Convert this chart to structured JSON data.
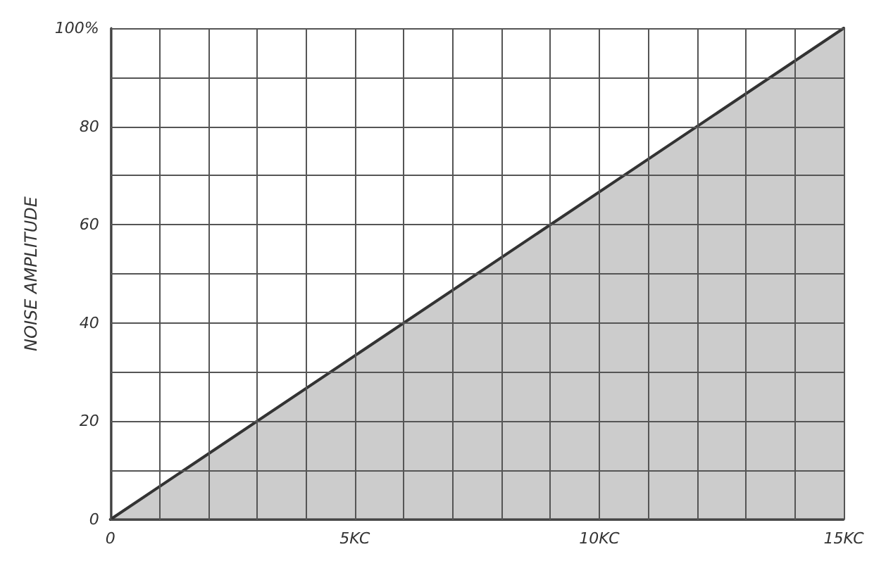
{
  "chart_data": {
    "type": "area",
    "ylabel": "NOISE AMPLITUDE",
    "x": [
      0,
      15
    ],
    "values": [
      0,
      100
    ],
    "color": "#333333",
    "xlim": [
      0,
      15
    ],
    "ylim": [
      0,
      100
    ],
    "xticks": [
      {
        "value": 0,
        "label": "0"
      },
      {
        "value": 1,
        "label": null
      },
      {
        "value": 2,
        "label": null
      },
      {
        "value": 3,
        "label": null
      },
      {
        "value": 4,
        "label": null
      },
      {
        "value": 5,
        "label": "5KC"
      },
      {
        "value": 6,
        "label": null
      },
      {
        "value": 7,
        "label": null
      },
      {
        "value": 8,
        "label": null
      },
      {
        "value": 9,
        "label": null
      },
      {
        "value": 10,
        "label": "10KC"
      },
      {
        "value": 11,
        "label": null
      },
      {
        "value": 12,
        "label": null
      },
      {
        "value": 13,
        "label": null
      },
      {
        "value": 14,
        "label": null
      },
      {
        "value": 15,
        "label": "15KC"
      }
    ],
    "yticks": [
      0,
      {
        "value": 10,
        "label": null
      },
      20,
      {
        "value": 30,
        "label": null
      },
      40,
      {
        "value": 50,
        "label": null
      },
      60,
      {
        "value": 70,
        "label": null
      },
      80,
      {
        "value": 90,
        "label": null
      },
      {
        "value": 100,
        "label": "100%"
      }
    ],
    "grid": true,
    "line_style": "solid",
    "marker": "none"
  }
}
